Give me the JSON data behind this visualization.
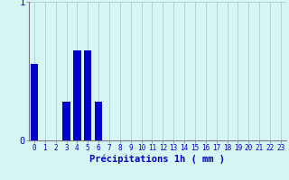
{
  "values": [
    0.55,
    0,
    0,
    0.28,
    0.65,
    0.65,
    0.28,
    0,
    0,
    0,
    0,
    0,
    0,
    0,
    0,
    0,
    0,
    0,
    0,
    0,
    0,
    0,
    0,
    0
  ],
  "categories": [
    0,
    1,
    2,
    3,
    4,
    5,
    6,
    7,
    8,
    9,
    10,
    11,
    12,
    13,
    14,
    15,
    16,
    17,
    18,
    19,
    20,
    21,
    22,
    23
  ],
  "bar_color": "#0000cc",
  "background_color": "#d8f5f5",
  "grid_color": "#aacfcf",
  "xlabel": "Précipitations 1h ( mm )",
  "ylim": [
    0,
    1.0
  ],
  "xlim": [
    -0.5,
    23.5
  ],
  "tick_color": "#0000cc",
  "axis_color": "#777777",
  "tick_fontsize": 5.5,
  "xlabel_fontsize": 7.5,
  "ytick_fontsize": 7.5
}
